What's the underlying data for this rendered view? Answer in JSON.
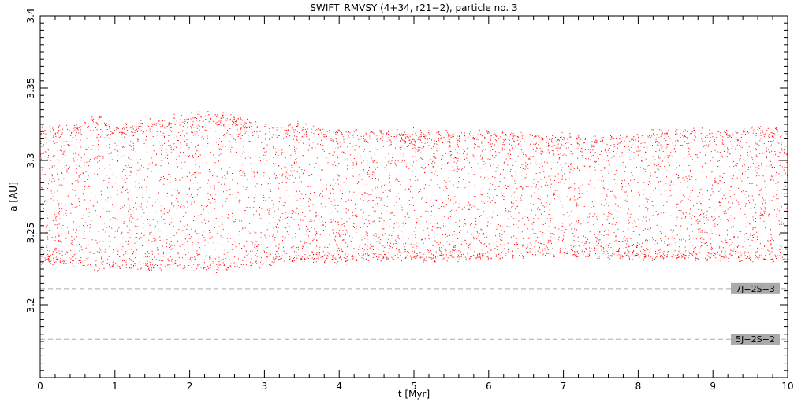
{
  "chart_data": {
    "type": "scatter",
    "title": "SWIFT_RMVSY (4+34, r21−2), particle no. 3",
    "xlabel": "t [Myr]",
    "ylabel": "a [AU]",
    "xlim": [
      0,
      10
    ],
    "ylim": [
      3.15,
      3.4
    ],
    "x_ticks": [
      "0",
      "1",
      "2",
      "3",
      "4",
      "5",
      "6",
      "7",
      "8",
      "9",
      "10"
    ],
    "y_ticks": [
      "3.2",
      "3.25",
      "3.3",
      "3.35",
      "3.4"
    ],
    "colors": {
      "points": "#ff0000",
      "resonance_line": "#aaaaaa",
      "label_box": "#aaaaaa"
    },
    "series": [
      {
        "envelope": {
          "t": [
            0.0,
            0.5,
            0.75,
            1.0,
            1.5,
            2.0,
            2.3,
            2.6,
            3.0,
            3.5,
            4.0,
            4.5,
            5.0,
            5.5,
            6.0,
            6.5,
            7.0,
            7.5,
            8.0,
            8.5,
            9.0,
            9.5,
            10.0
          ],
          "upper": [
            3.322,
            3.323,
            3.33,
            3.322,
            3.327,
            3.33,
            3.332,
            3.33,
            3.323,
            3.324,
            3.32,
            3.319,
            3.319,
            3.318,
            3.319,
            3.318,
            3.316,
            3.314,
            3.318,
            3.32,
            3.319,
            3.322,
            3.321
          ],
          "lower": [
            3.23,
            3.229,
            3.225,
            3.226,
            3.226,
            3.226,
            3.225,
            3.227,
            3.229,
            3.232,
            3.231,
            3.232,
            3.232,
            3.232,
            3.233,
            3.235,
            3.235,
            3.235,
            3.233,
            3.233,
            3.233,
            3.232,
            3.232
          ]
        }
      }
    ],
    "resonances": [
      {
        "label": "7J−2S−3",
        "a": 3.2115
      },
      {
        "label": "5J−2S−2",
        "a": 3.1765
      }
    ],
    "grid": false
  }
}
